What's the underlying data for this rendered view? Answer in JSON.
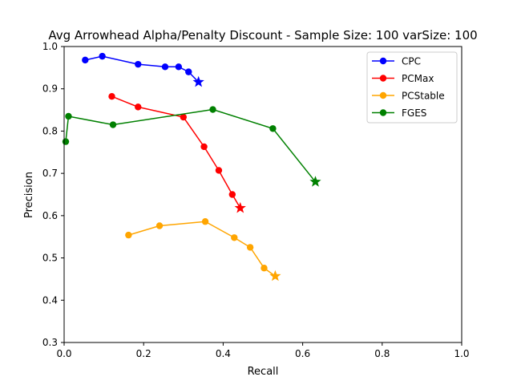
{
  "chart_data": {
    "type": "line",
    "title": "Avg Arrowhead Alpha/Penalty Discount - Sample Size: 100 varSize: 100",
    "xlabel": "Recall",
    "ylabel": "Precision",
    "xlim": [
      0.0,
      1.0
    ],
    "ylim": [
      0.3,
      1.0
    ],
    "xticks": [
      "0.0",
      "0.2",
      "0.4",
      "0.6",
      "0.8",
      "1.0"
    ],
    "yticks": [
      "0.3",
      "0.4",
      "0.5",
      "0.6",
      "0.7",
      "0.8",
      "0.9",
      "1.0"
    ],
    "grid": false,
    "legend_position": "top-right",
    "series": [
      {
        "name": "CPC",
        "color": "#0000ff",
        "points": [
          [
            0.053,
            0.968
          ],
          [
            0.096,
            0.977
          ],
          [
            0.186,
            0.958
          ],
          [
            0.254,
            0.952
          ],
          [
            0.288,
            0.952
          ],
          [
            0.313,
            0.94
          ]
        ],
        "star": [
          0.338,
          0.916
        ]
      },
      {
        "name": "PCMax",
        "color": "#ff0000",
        "points": [
          [
            0.12,
            0.882
          ],
          [
            0.186,
            0.857
          ],
          [
            0.3,
            0.833
          ],
          [
            0.352,
            0.763
          ],
          [
            0.389,
            0.707
          ],
          [
            0.423,
            0.65
          ]
        ],
        "star": [
          0.443,
          0.618
        ]
      },
      {
        "name": "PCStable",
        "color": "#ffa500",
        "points": [
          [
            0.162,
            0.554
          ],
          [
            0.24,
            0.576
          ],
          [
            0.355,
            0.586
          ],
          [
            0.428,
            0.548
          ],
          [
            0.468,
            0.525
          ],
          [
            0.503,
            0.476
          ]
        ],
        "star": [
          0.531,
          0.457
        ]
      },
      {
        "name": "FGES",
        "color": "#008000",
        "points": [
          [
            0.004,
            0.775
          ],
          [
            0.011,
            0.835
          ],
          [
            0.123,
            0.815
          ],
          [
            0.374,
            0.851
          ],
          [
            0.525,
            0.806
          ]
        ],
        "star": [
          0.632,
          0.68
        ]
      }
    ]
  }
}
